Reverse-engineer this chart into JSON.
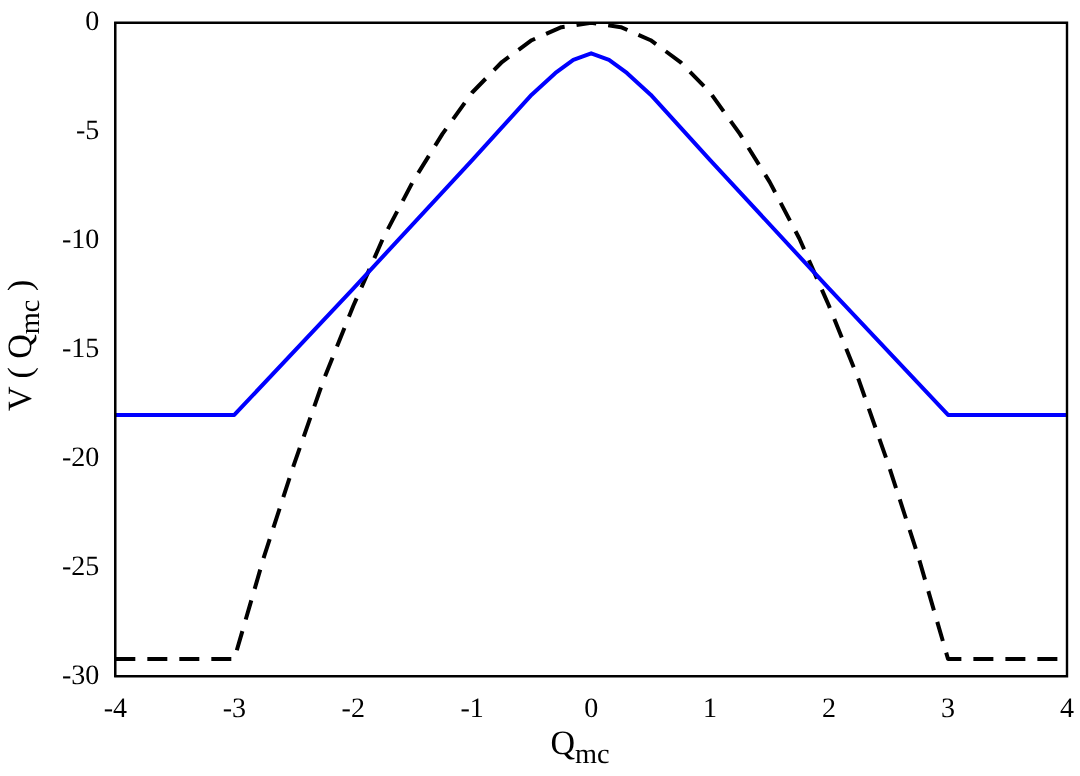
{
  "chart_data": {
    "type": "line",
    "xlabel": "Q$_{mc}$",
    "ylabel": "V ( Q$_{mc}$ )",
    "xlim": [
      -4,
      4
    ],
    "xticks": [
      -4,
      -3,
      -2,
      -1,
      0,
      1,
      2,
      3,
      4
    ],
    "ylim": [
      -30,
      0
    ],
    "yticks": [
      -30,
      -25,
      -20,
      -15,
      -10,
      -5,
      0
    ],
    "grid": false,
    "legend": false,
    "marker": "none",
    "series": [
      {
        "color": "#0000ff",
        "line_style": "solid",
        "x": [
          -4,
          -3,
          -2,
          -1,
          -0.5,
          -0.3,
          -0.15,
          0,
          0.15,
          0.3,
          0.5,
          1,
          2,
          3,
          4
        ],
        "values": [
          -18,
          -18,
          -12.2,
          -6.3,
          -3.3,
          -2.3,
          -1.7,
          -1.4,
          -1.7,
          -2.3,
          -3.3,
          -6.3,
          -12.2,
          -18,
          -18
        ]
      },
      {
        "color": "#000000",
        "line_style": "dashed",
        "x": [
          -4,
          -3,
          -2.75,
          -2.5,
          -2.25,
          -2,
          -1.75,
          -1.5,
          -1.25,
          -1,
          -0.75,
          -0.5,
          -0.25,
          0,
          0.25,
          0.5,
          0.75,
          1,
          1.25,
          1.5,
          1.75,
          2,
          2.25,
          2.5,
          2.75,
          3,
          4
        ],
        "values": [
          -29.2,
          -29.2,
          -24.5,
          -20.3,
          -16.4,
          -13.0,
          -9.9,
          -7.3,
          -5.1,
          -3.2,
          -1.8,
          -0.8,
          -0.2,
          0,
          -0.2,
          -0.8,
          -1.8,
          -3.2,
          -5.1,
          -7.3,
          -9.9,
          -13.0,
          -16.4,
          -20.3,
          -24.5,
          -29.2,
          -29.2
        ]
      }
    ]
  }
}
